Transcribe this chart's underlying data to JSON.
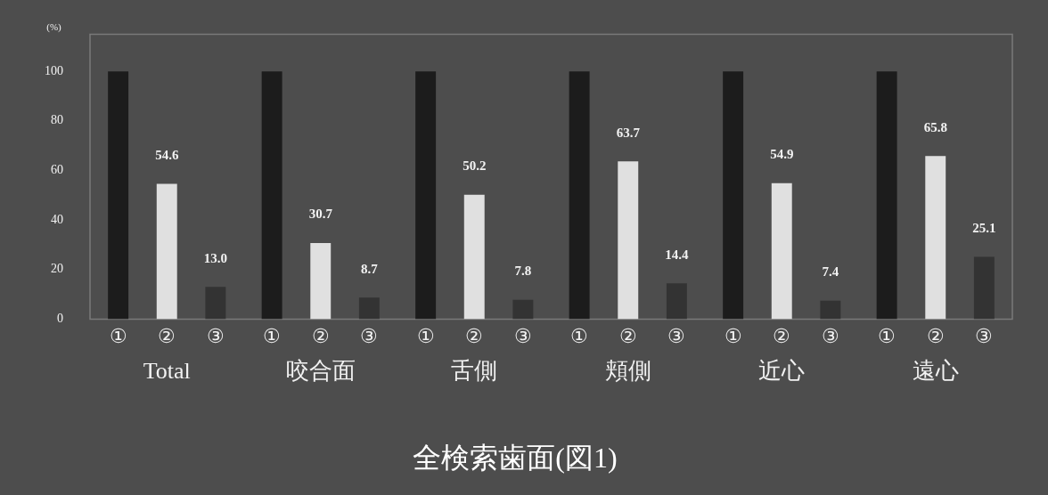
{
  "chart_data": {
    "type": "bar",
    "title": "全検索歯面(図1)",
    "ylabel": "(%)",
    "categories": [
      "Total",
      "咬合面",
      "舌側",
      "頬側",
      "近心",
      "遠心"
    ],
    "series": [
      {
        "name": "①",
        "color": "#1c1c1c",
        "values": [
          100,
          100,
          100,
          100,
          100,
          100
        ],
        "value_labels": [
          null,
          null,
          null,
          null,
          null,
          null
        ]
      },
      {
        "name": "②",
        "color": "#e0e0e0",
        "values": [
          54.6,
          30.7,
          50.2,
          63.7,
          54.9,
          65.8
        ],
        "value_labels": [
          "54.6",
          "30.7",
          "50.2",
          "63.7",
          "54.9",
          "65.8"
        ]
      },
      {
        "name": "③",
        "color": "#333333",
        "values": [
          13.0,
          8.7,
          7.8,
          14.4,
          7.4,
          25.1
        ],
        "value_labels": [
          "13.0",
          "8.7",
          "7.8",
          "14.4",
          "7.4",
          "25.1"
        ]
      }
    ],
    "ylim": [
      0,
      115
    ],
    "yticks": [
      0,
      20,
      40,
      60,
      80,
      100
    ],
    "grid": false,
    "legend": "bottom"
  }
}
